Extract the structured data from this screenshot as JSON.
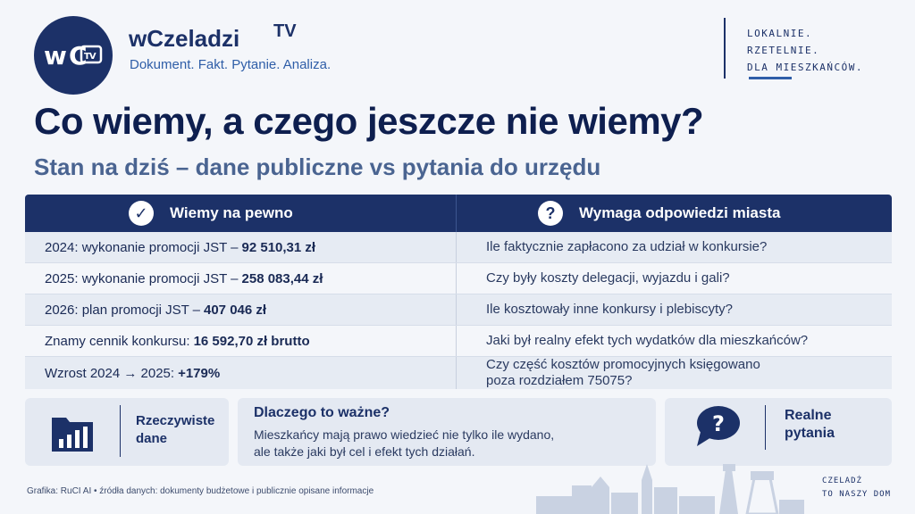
{
  "brand": {
    "logo_text": "wC TV",
    "name": "wCzeladzi",
    "tv": "TV",
    "tagline": "Dokument. Fakt. Pytanie. Analiza."
  },
  "motto": [
    "LOKALNIE.",
    "RZETELNIE.",
    "DLA MIESZKAŃCÓW."
  ],
  "headline": "Co wiemy, a czego jeszcze nie wiemy?",
  "subheadline": "Stan na dziś – dane publiczne vs pytania do urzędu",
  "table": {
    "left_header": "Wiemy na pewno",
    "right_header": "Wymaga odpowiedzi miasta",
    "rows": [
      {
        "left_text": "2024: wykonanie promocji JST –",
        "left_value": "92 510,31 zł",
        "right": "Ile faktycznie zapłacono za udział w konkursie?"
      },
      {
        "left_text": "2025: wykonanie promocji JST –",
        "left_value": "258 083,44 zł",
        "right": "Czy były koszty delegacji, wyjazdu i gali?"
      },
      {
        "left_text": "2026: plan promocji JST –",
        "left_value": "407 046 zł",
        "right": "Ile kosztowały inne konkursy i plebiscyty?"
      },
      {
        "left_text": "Znamy cennik konkursu:",
        "left_value": "16 592,70 zł brutto",
        "right": "Jaki był realny efekt tych wydatków dla mieszkańców?"
      },
      {
        "left_text": "Wzrost 2024 → 2025:",
        "left_value": "+179%",
        "right_line1": "Czy część kosztów promocyjnych księgowano",
        "right_line2": "poza rozdziałem 75075?"
      }
    ]
  },
  "cards": {
    "real_data": {
      "line1": "Rzeczywiste",
      "line2": "dane"
    },
    "why": {
      "title": "Dlaczego to ważne?",
      "line1": "Mieszkańcy mają prawo wiedzieć nie tylko ile wydano,",
      "line2": "ale także jaki był cel i efekt tych działań."
    },
    "real_questions": {
      "line1": "Realne",
      "line2": "pytania"
    }
  },
  "footer": {
    "source": "Grafika: RuCI AI  •  źródła danych: dokumenty budżetowe i publicznie opisane informacje",
    "motto_line1": "CZELADŹ",
    "motto_line2": "TO NASZY DOM"
  },
  "colors": {
    "navy": "#1c3168",
    "accent_blue": "#2f5ea8",
    "sub_grey": "#4a6491",
    "row_alt": "#e6ebf3"
  }
}
